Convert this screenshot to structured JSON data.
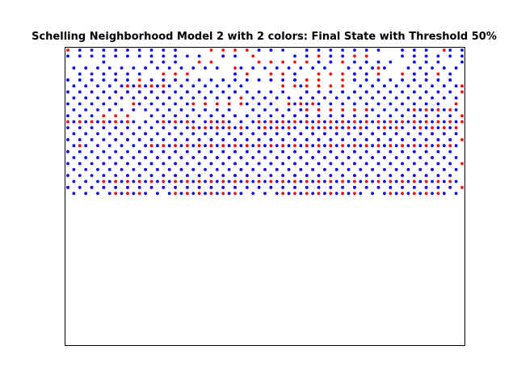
{
  "chart_data": {
    "type": "scatter",
    "title": "Schelling Neighborhood Model 2 with 2 colors: Final State with Threshold 50%",
    "xlabel": "",
    "ylabel": "",
    "grid": false,
    "legend": "none",
    "axis_ticks": false,
    "grid_size": [
      67,
      50
    ],
    "colors": {
      "A": "#ff0000",
      "B": "#0000ff"
    },
    "point_layout": "Each series lists rows of a 67-column occupancy grid. Row strings are read left to right and rows run from the top of the plot to the bottom.",
    "series": [
      {
        "symbol": "A",
        "cells": [
          "x.......................x.x.x.x.x.x............................x.....",
          "..........................x....x..........x.x.x.x.x...............",
          "......................x.x.......x.x.x.x.x.x.x.x...x...............",
          "............................x.......................x...............",
          "................x.x.x.......x.x...x.x.....x.x.x.x.x.x...x.x.x.x.....",
          "............x.x.x.x.............x.x.x.x.x.x...x.x...........x.x.x..",
          "..........x.x.x.x...................x.x.x.x.x.x...................x",
          "........x.x.x.x.x...x.x.....x.x.........x.x...x.x.x...............x",
          ".............................x.....................................",
          "...........x.........x.x.x.x.x.......x.x.x.......................x.",
          "........................................x.x.x.x.x.x.......x.x.x.x..",
          "......x.x.x.......x.....x.x.x.x.x.....x.x.x.x.x...x...............x",
          "x.x.x.x.x.x.....x.x.x...x.x.....x.x.x.x.x.x.x.x.x.x.x.x.x.x.x.x.x.x",
          ".....................x.x.x.x.x...x.x.x...x.x.x.x.x...x.x...x.x.x.x.",
          ".............x...............x.x.x.x.x.x.x.x.x.x.x.x...x.x.x.x.x...",
          "........x.x.x.....x.x.x.x.x.x.x.x.x.x.x.x.x.x.x.x.x.x.x.x.x.x.x.x.x",
          "..x...........x.x.x.x.x.x.x.x.x.x.x.x.x.x.x.x.x.x.x.x.x.x.x.x.x.x..",
          "x...........x.x.x.x.x...x.x.x.x.x...x.x...x.x.x.x...x.x.x.x.x.x....",
          ".........x.x.x.x.x.x.x.x.x.x.x.x.x.x.x.x.x.x.x.x.x.x.x.x.x.x.x.x...",
          "......x.x.x.x.x.x.x.x.x.x.x.x.x.x.x.x.x.x.x.x.x.x.x.x.x.x.x.x.x.x.x",
          ".............x.x.x.x.x.......x.x.x.x.x.x.x.x.x.x.x.x...x.x.x.x.x.x.",
          "..........x.x.x.x.x.x.x.x...x.x.x.x.x.x.x.x.x.x.x.x.x.x.x.x.x.x.x..",
          "......x.x.x.x.x.x.x.x.x.x.x.x.x.x.x.x.x.x.x.x.x.x.x.x.x.x.x.x.x.x..",
          "x.x.x.x.x.x.x.x.x.x.x.x.x.x.x.x.x.x.x.x.x.x.x.x.x.x.x.x.x.x.x.x.x.x",
          "........x.x.x.....x.x.x.x.x.x.......x.x.x.x.x.x.x.....x.x.x.x.x...."
        ]
      },
      {
        "symbol": "B",
        "cells": [
          "..x.x.x.x.x.x.x.x.x.............x.x.x...x.x.x.x.x.x.x...x.x.x...x.x",
          "x.x.x.x.x.x.x.x.x.x.x.x...x.x.........x.x...x.x.........x.x.x.x.x.x",
          "......x.......x.x.x.......................x.x...x.x.x.x...x.x.x...x",
          ".x.x.x.x.x.x.x.x.x.x.x.x.x...x.x.x.x.x.x.x.x...x.x.x.x...x.x.x.x.x.",
          "..x.x.x.x.x.x...............x.........x.........x.x.......x.x...x..",
          "x.x.x.x.x.x...x.x.x.x.x.x.x.x.x.x.x.x.x.........x.x.x.x.x.x.x.x.x..",
          ".x.x.x.x.x.x.x.x.x.x.x.x.x.x.x.........x.........x.x.x.x.x.x.x.x.x.",
          "x.x.x.x.x.x.x.x.x.x.x.x.x.x.x.x.x.x.x...x.x.x.x.x.x.x.x.x.x.x.x.x..",
          ".x.x.x.x.x.x.x.x.x.x.x.x.x.x...x.x.x.x.x.x.x.x.x.x.x.x.x.x.x.x.x.x",
          "x.x.x.x.x...x.x.x.x.x.........x.x.x...x.x.x.x.x.x.x.x.x.x.x.x.x....",
          ".x.x.x.x.x.x.x.x.x.x.x.x.x.x...x.x.x.x.x...........x.x.x.x.x.x.x.x",
          "x.x.x.........x.x.x.x.x.x.x.x.x.x.x.x.x.x.x.x.x.x.x.x.x.x.x.x.x.x..",
          ".x.x.x.x.x.x.x.x.x.x.x.x.x.x.x.x.x.x.x.x.x.x.x.x.x.x.x.x.x.x.x.x.x",
          "x.x.x.x.x.x.x.x.x.x.x.x.x.x.x.x.x.x.x.x.x.x.x.x.x.x.x.x.x.x.x.x.x..",
          ".x.x.x.x.x.x.x.x.x.x.x.x.x.x.x.x.x.x.x.x.x.x.x.x.x.x.x.x.x.x.x.x.x",
          "x.x.x.x.x.x.x.x.x.x.x.x.x.x.x.x.x.x.x.x.x.x.x.x.x.x.x.x.x.x.x.x.x..",
          ".x.x.x.x.x.x.x.x.x.x.x.x.x.x.x.x.x.x.x.x.x.x.x.x.x.x.x.x.x.x.x.x.x",
          "x.x.x.x.x.x.x.x.x.x.x.x.x.x.x.x.x.x.x.x.x.x.x.x.x.x.x.x.x.x.x.x.x..",
          ".x.x.x.x.x.x.x.x.x.x.x.x.x.x.x.x.x.x.x.x.x.x.x.x.x.x.x.x.x.x.x.x.x",
          "x.x.x.x.x.x.x.x.x.x.x.x.x.x.x.x.x.x.x.x.x.x.x.x.x.x.x.x.x.x.x.x.x..",
          ".x.x.x.x.x.x.x.x.x.x.x.x.x.x.x.x.x.x.x.x.x.x.x.x.x.x.x.x.x.x.x.x.x",
          "x.x.x.x.x.x.x.x.x.x.x.x.x.x.x.x.x.x.x.x.x.x.x.x.x.x.x.x.x.x.x.x.x..",
          ".x.x.x.x.x.x.x.x.x.x.x.x.x.x.x.x.x.x.x.x.x.x.x.x.x.x.x.x.x.x.x.x.x",
          "x.x.x.x.x.x.x.x.x.x.x.x.x.x.x.x.x.x.x.x.x.x.x.x.x.x.x.x.x.x.x.x.x..",
          ".x.x.x.x.x.x.x.x.x.x.x.x.x.x.x.x.x.x.x.x.x.x.x.x.x.x.x.x.x.x.x.x.x"
        ]
      }
    ]
  }
}
